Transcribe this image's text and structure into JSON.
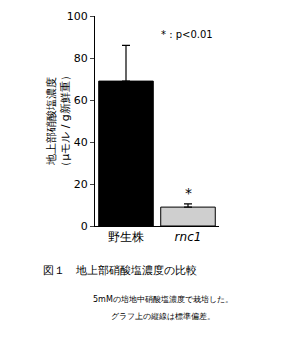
{
  "chart_data": {
    "type": "bar",
    "y_label": "地上部硝酸塩濃度\n（μモル / g新鮮重）",
    "categories": [
      "野生株",
      "rnc1"
    ],
    "values": [
      69,
      9
    ],
    "error": [
      17,
      1.5
    ],
    "colors": [
      "#000000",
      "#cfcfcf"
    ],
    "ylim": [
      0,
      100
    ],
    "yticks": [
      0,
      20,
      40,
      60,
      80,
      100
    ],
    "grid": false,
    "annotations": [
      {
        "text": "*",
        "category": "rnc1"
      },
      {
        "text": "* : p<0.01"
      }
    ],
    "caption": [
      "図１　地上部硝酸塩濃度の比較",
      "5mMの培地中硝酸塩濃度で栽培した。",
      "グラフ上の縦線は標準偏差。"
    ]
  }
}
